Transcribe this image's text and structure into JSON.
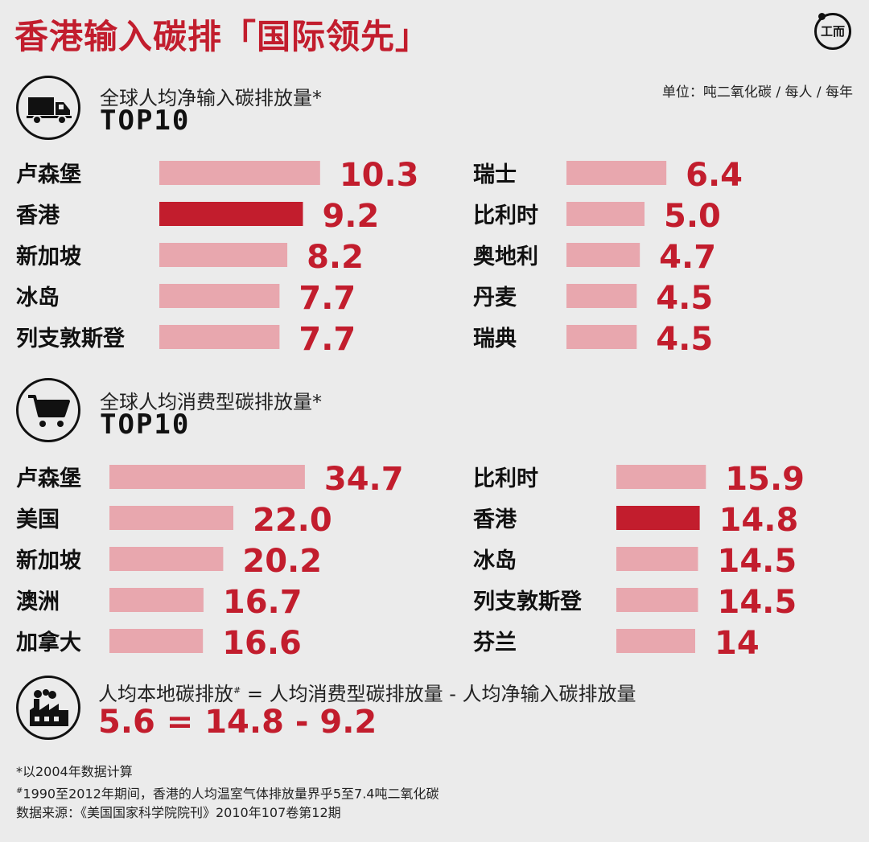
{
  "header": {
    "title": "香港输入碳排「国际领先」",
    "logo_text": "⼯而"
  },
  "unit": "单位：吨二氧化碳 / 每人 / 每年",
  "section1": {
    "subtitle": "全球人均净输入碳排放量*",
    "heading": "TOP10"
  },
  "section2": {
    "subtitle": "全球人均消费型碳排放量*",
    "heading": "TOP10"
  },
  "colors": {
    "accent": "#c21d2d",
    "bar_light": "#e8a7ae",
    "background": "#ebebeb"
  },
  "icons": [
    "truck-icon",
    "shopping-cart-icon",
    "factory-icon"
  ],
  "formula": {
    "text_a": "人均本地碳排放",
    "text_mark": "#",
    "text_b": " = 人均消费型碳排放量 - 人均净输入碳排放量",
    "equation": "5.6 = 14.8 - 9.2"
  },
  "notes": {
    "note1": "*以2004年数据计算",
    "note2_mark": "#",
    "note2": "1990至2012年期间，香港的人均温室气体排放量界乎5至7.4吨二氧化碳",
    "source": "数据来源：《美国国家科学院院刊》2010年107卷第12期"
  },
  "chart_data": [
    {
      "type": "bar",
      "title": "全球人均净输入碳排放量*",
      "categories": [
        "卢森堡",
        "香港",
        "新加坡",
        "冰岛",
        "列支敦斯登",
        "瑞士",
        "比利时",
        "奥地利",
        "丹麦",
        "瑞典"
      ],
      "values": [
        10.3,
        9.2,
        8.2,
        7.7,
        7.7,
        6.4,
        5.0,
        4.7,
        4.5,
        4.5
      ],
      "labels": [
        "10.3",
        "9.2",
        "8.2",
        "7.7",
        "7.7",
        "6.4",
        "5.0",
        "4.7",
        "4.5",
        "4.5"
      ],
      "highlight": "香港"
    },
    {
      "type": "bar",
      "title": "全球人均消费型碳排放量*",
      "categories": [
        "卢森堡",
        "美国",
        "新加坡",
        "澳洲",
        "加拿大",
        "比利时",
        "香港",
        "冰岛",
        "列支敦斯登",
        "芬兰"
      ],
      "values": [
        34.7,
        22.0,
        20.2,
        16.7,
        16.6,
        15.9,
        14.8,
        14.5,
        14.5,
        14
      ],
      "labels": [
        "34.7",
        "22.0",
        "20.2",
        "16.7",
        "16.6",
        "15.9",
        "14.8",
        "14.5",
        "14.5",
        "14"
      ],
      "highlight": "香港"
    }
  ]
}
